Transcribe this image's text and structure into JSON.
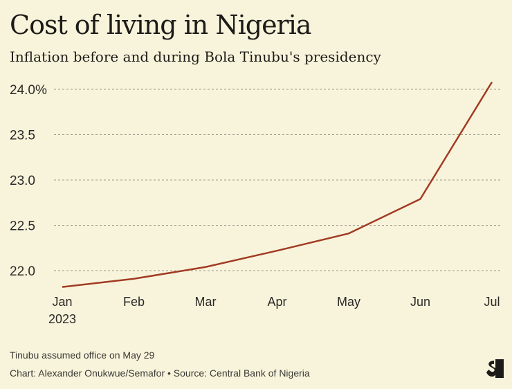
{
  "title": "Cost of living in Nigeria",
  "subtitle": "Inflation before and during Bola Tinubu's presidency",
  "chart_data": {
    "type": "line",
    "categories": [
      "Jan",
      "Feb",
      "Mar",
      "Apr",
      "May",
      "Jun",
      "Jul"
    ],
    "x_sublabels": [
      "2023",
      "",
      "",
      "",
      "",
      "",
      ""
    ],
    "series": [
      {
        "name": "Inflation",
        "values": [
          21.82,
          21.91,
          22.04,
          22.22,
          22.41,
          22.79,
          24.08
        ],
        "color": "#a23a22"
      }
    ],
    "yticks": [
      22.0,
      22.5,
      23.0,
      23.5,
      24.0
    ],
    "ytick_labels": [
      "22.0",
      "22.5",
      "23.0",
      "23.5",
      "24.0%"
    ],
    "ylim": [
      21.83,
      24.1
    ],
    "grid": true,
    "title": "Cost of living in Nigeria",
    "xlabel": "",
    "ylabel": ""
  },
  "footer": {
    "note": "Tinubu assumed office on May 29",
    "credit": "Chart: Alexander Onukwue/Semafor • Source: Central Bank of Nigeria"
  },
  "logo": "S"
}
